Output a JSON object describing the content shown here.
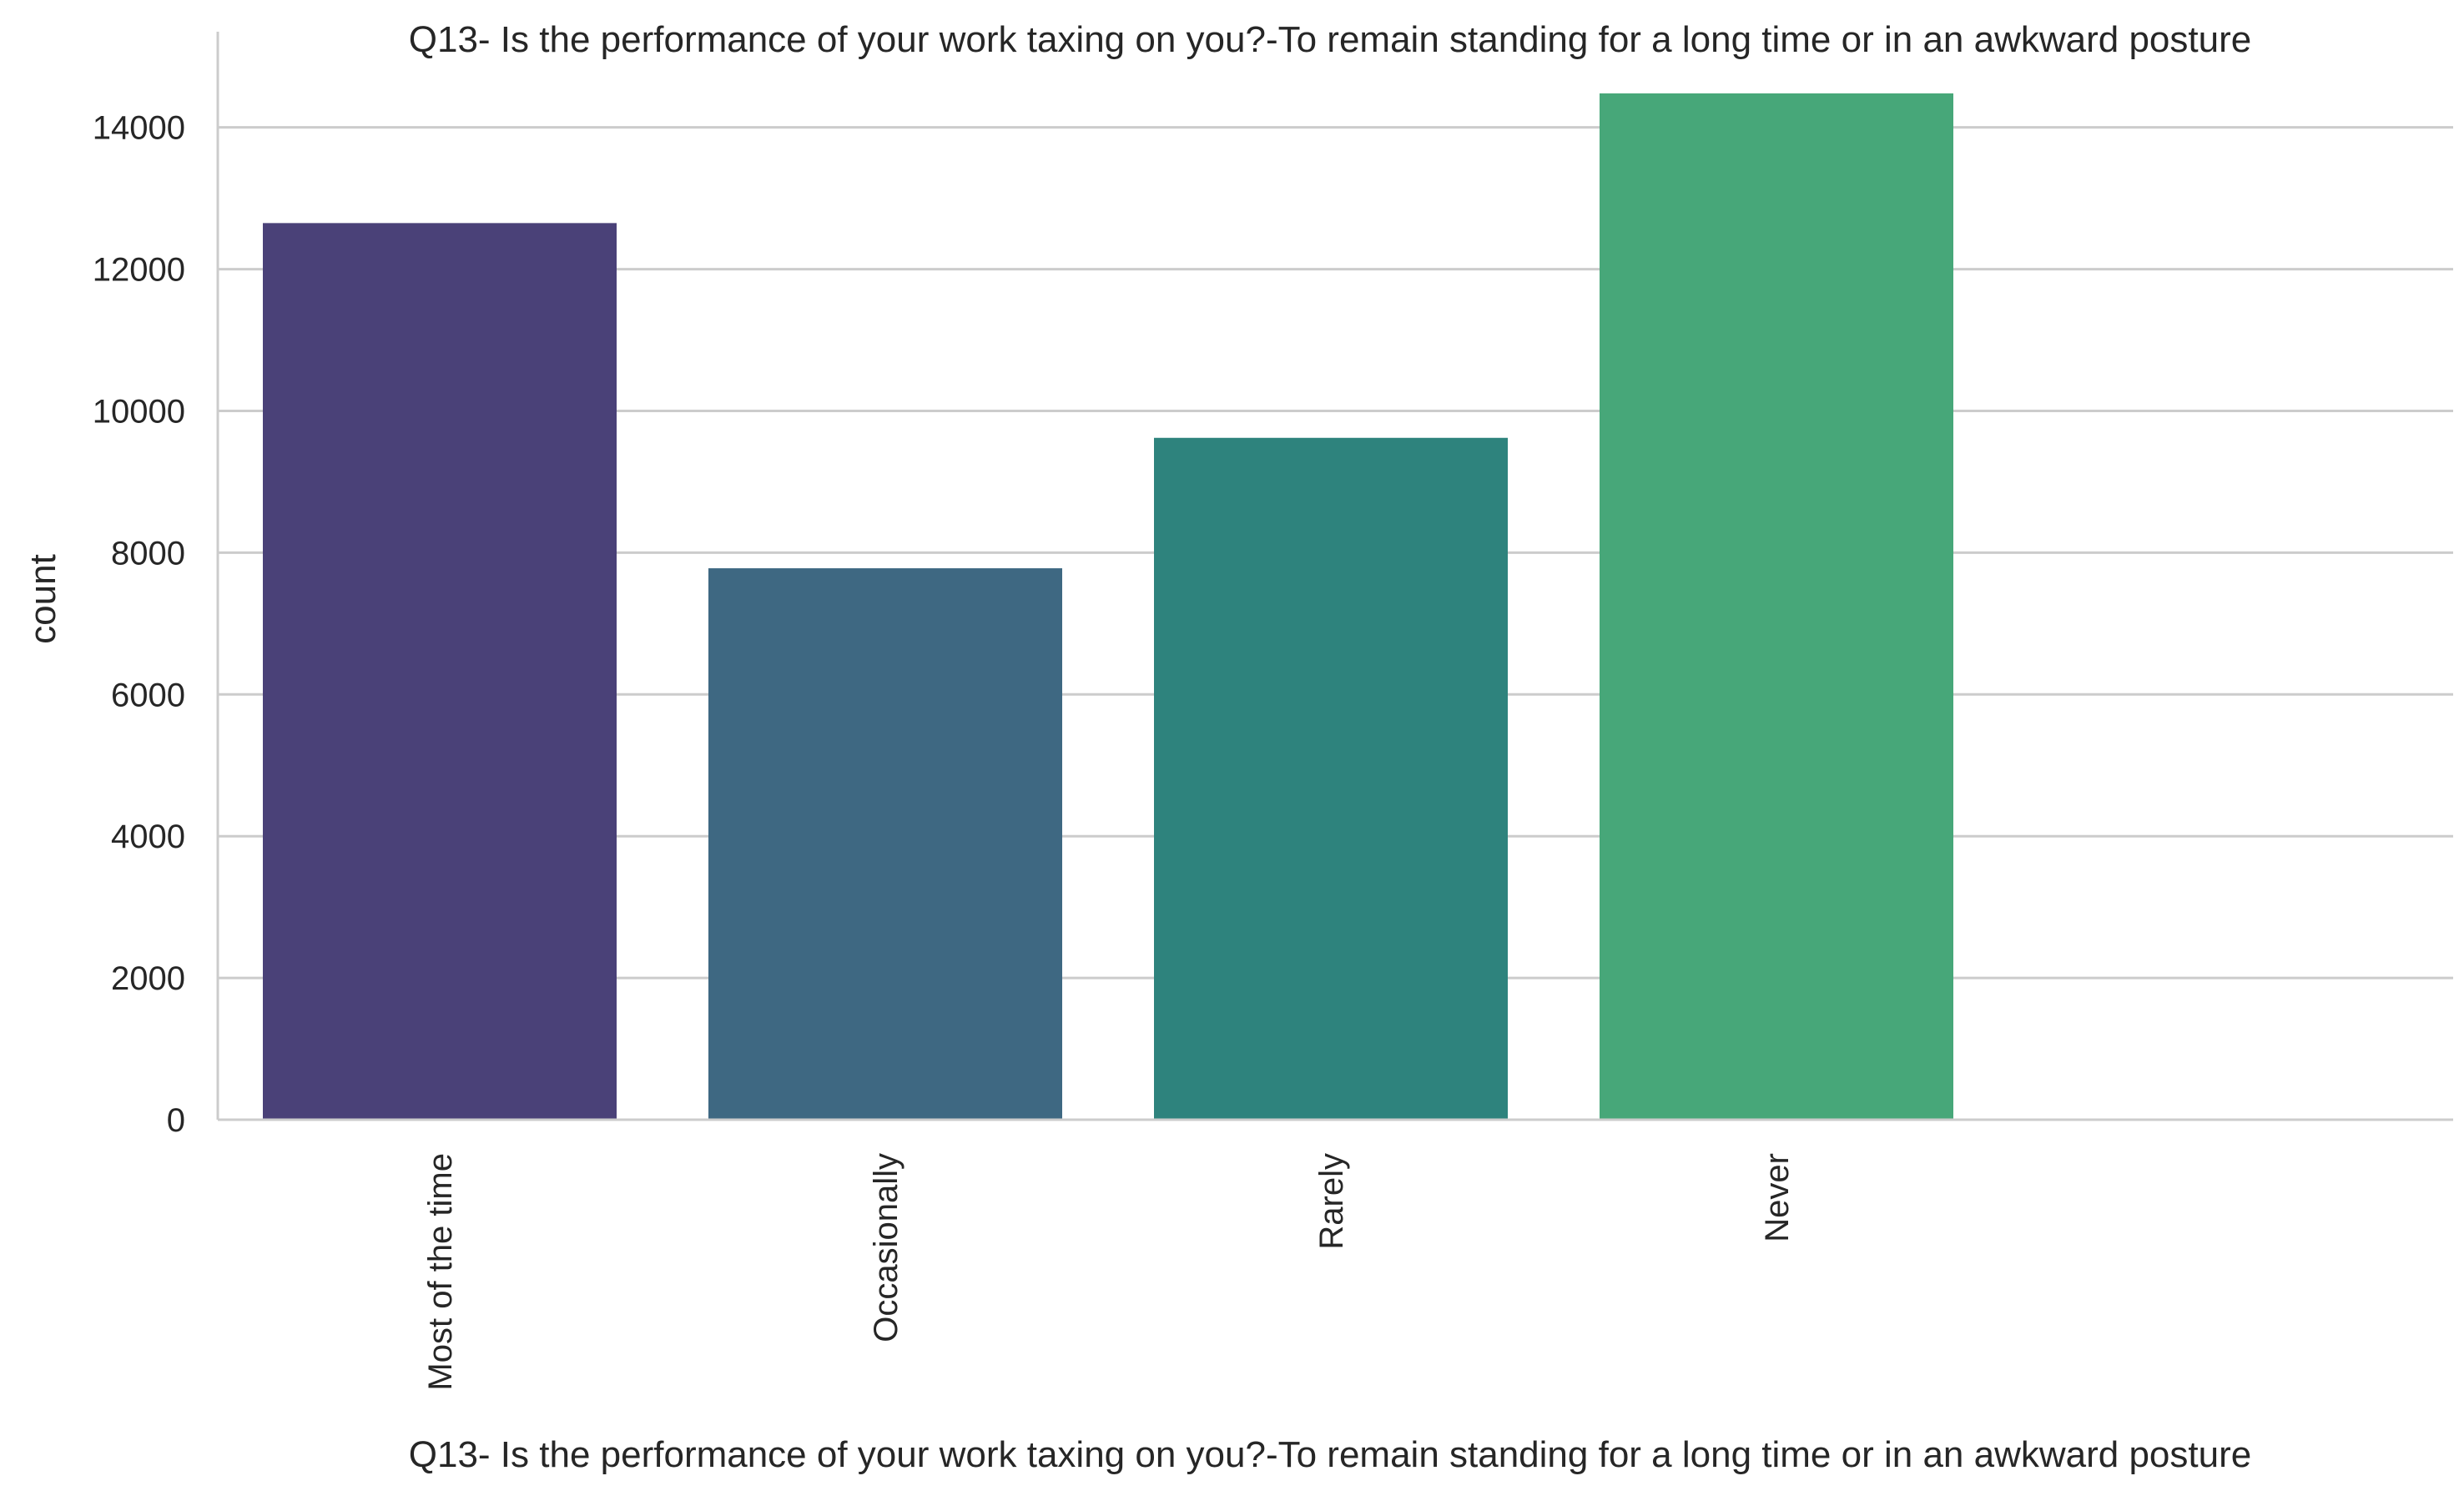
{
  "chart_data": {
    "type": "bar",
    "title": "Q13- Is the performance of your work taxing on you?-To remain standing for a long time or in an awkward posture",
    "xlabel": "Q13- Is the performance of your work taxing on you?-To remain standing for a long time or in an awkward posture",
    "ylabel": "count",
    "categories": [
      "Most of the time",
      "Occasionally",
      "Rarely",
      "Never"
    ],
    "values": [
      12650,
      7780,
      9620,
      14480
    ],
    "colors": [
      "#4a4178",
      "#3e6882",
      "#2e837d",
      "#47a779"
    ],
    "ylim": [
      0,
      15350
    ],
    "yticks": [
      "0",
      "2000",
      "4000",
      "6000",
      "8000",
      "10000",
      "12000",
      "14000"
    ],
    "grid": true,
    "legend": "none"
  }
}
